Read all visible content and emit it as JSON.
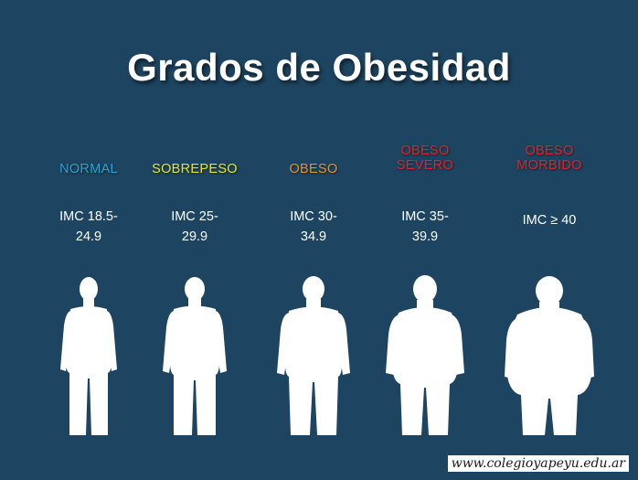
{
  "title": "Grados de Obesidad",
  "colors": {
    "background": "#1d4561",
    "normal": "#2aa3d8",
    "sobrepeso": "#e6e62c",
    "obeso": "#e8922a",
    "obeso_severo": "#e2232a",
    "obeso_morbido": "#e2232a",
    "figure": "#ffffff"
  },
  "categories": [
    {
      "label_lines": [
        "NORMAL"
      ],
      "imc_lines": [
        "IMC 18.5-",
        "24.9"
      ],
      "figure_icon": "person-silhouette-icon"
    },
    {
      "label_lines": [
        "SOBREPESO"
      ],
      "imc_lines": [
        "IMC 25-",
        "29.9"
      ],
      "figure_icon": "person-silhouette-icon"
    },
    {
      "label_lines": [
        "OBESO"
      ],
      "imc_lines": [
        "IMC 30-",
        "34.9"
      ],
      "figure_icon": "person-silhouette-icon"
    },
    {
      "label_lines": [
        "OBESO",
        "SEVERO"
      ],
      "imc_lines": [
        "IMC 35-",
        "39.9"
      ],
      "figure_icon": "person-silhouette-icon"
    },
    {
      "label_lines": [
        "OBESO",
        "MORBIDO"
      ],
      "imc_lines": [
        "IMC ≥ 40"
      ],
      "figure_icon": "person-silhouette-icon"
    }
  ],
  "watermark": "www.colegioyapeyu.edu.ar"
}
